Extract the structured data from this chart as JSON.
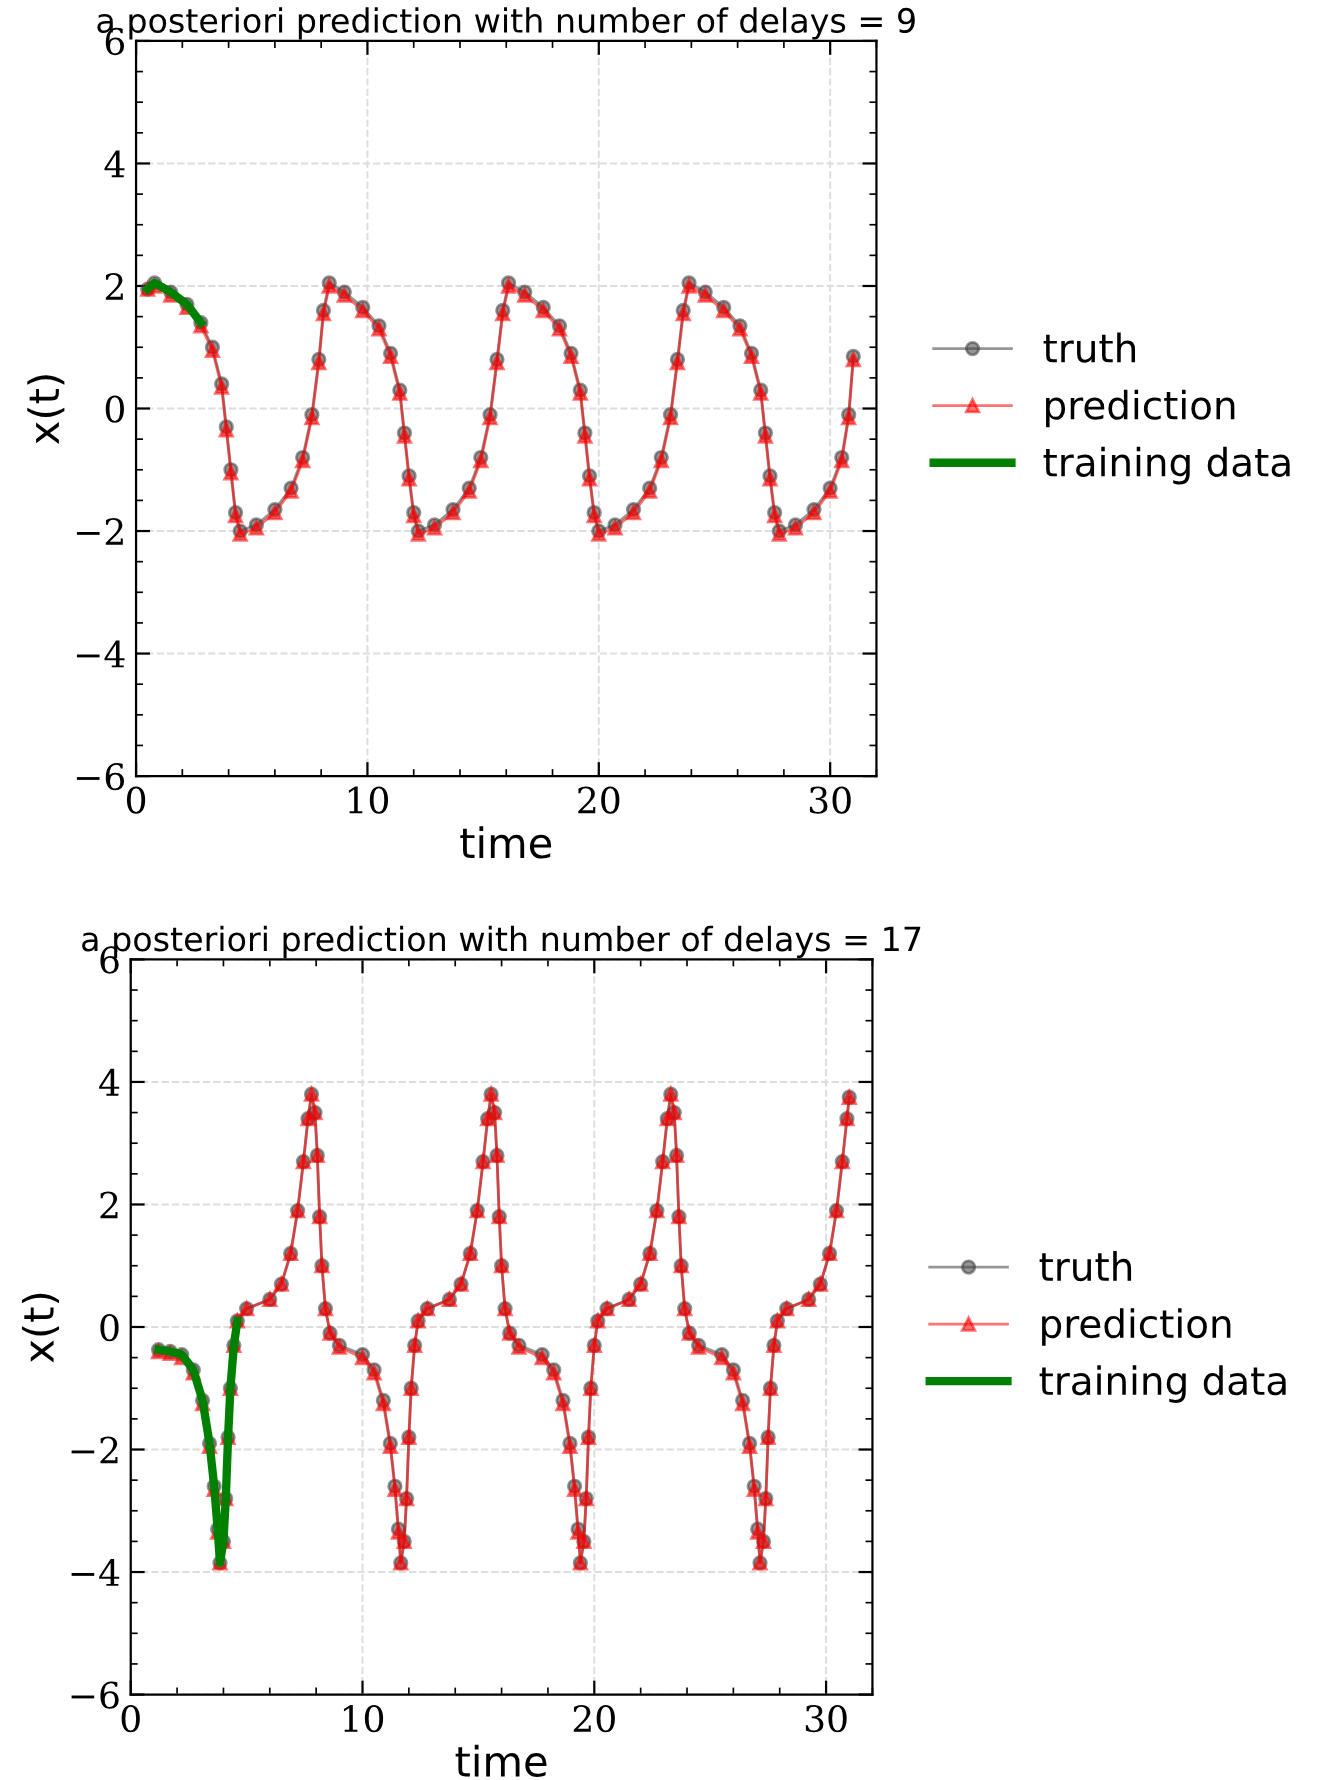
{
  "chart_data": [
    {
      "type": "line",
      "title": "a posteriori prediction with number of delays = 9",
      "xlabel": "time",
      "ylabel": "x(t)",
      "xlim": [
        0,
        32
      ],
      "ylim": [
        -6,
        6
      ],
      "xticks": [
        0,
        10,
        20,
        30
      ],
      "yticks": [
        {
          "value": -6,
          "label": "−6"
        },
        {
          "value": -4,
          "label": "−4"
        },
        {
          "value": -2,
          "label": "−2"
        },
        0,
        2,
        4,
        6
      ],
      "grid": true,
      "legend": "right",
      "x": [
        0.5,
        0.8,
        1.5,
        2.2,
        2.8,
        3.3,
        3.7,
        3.9,
        4.1,
        4.3,
        4.5,
        5.2,
        6.0,
        6.7,
        7.2,
        7.6,
        7.9,
        8.1,
        8.35,
        9.0,
        9.8,
        10.5,
        11.0,
        11.4,
        11.6,
        11.8,
        12.0,
        12.2,
        12.9,
        13.7,
        14.4,
        14.9,
        15.3,
        15.6,
        15.85,
        16.1,
        16.8,
        17.6,
        18.3,
        18.8,
        19.2,
        19.4,
        19.6,
        19.8,
        20.0,
        20.7,
        21.5,
        22.2,
        22.7,
        23.1,
        23.4,
        23.65,
        23.9,
        24.6,
        25.4,
        26.1,
        26.6,
        27.0,
        27.2,
        27.4,
        27.6,
        27.8,
        28.5,
        29.3,
        30.0,
        30.5,
        30.8,
        31.0
      ],
      "series": [
        {
          "name": "truth",
          "color": "#404040",
          "marker": "circle",
          "values": [
            1.95,
            2.05,
            1.9,
            1.7,
            1.4,
            1.0,
            0.4,
            -0.3,
            -1.0,
            -1.7,
            -2.0,
            -1.9,
            -1.65,
            -1.3,
            -0.8,
            -0.1,
            0.8,
            1.6,
            2.05,
            1.9,
            1.65,
            1.35,
            0.9,
            0.3,
            -0.4,
            -1.1,
            -1.7,
            -2.0,
            -1.9,
            -1.65,
            -1.3,
            -0.8,
            -0.1,
            0.8,
            1.6,
            2.05,
            1.9,
            1.65,
            1.35,
            0.9,
            0.3,
            -0.4,
            -1.1,
            -1.7,
            -2.0,
            -1.9,
            -1.65,
            -1.3,
            -0.8,
            -0.1,
            0.8,
            1.6,
            2.05,
            1.9,
            1.65,
            1.35,
            0.9,
            0.3,
            -0.4,
            -1.1,
            -1.7,
            -2.0,
            -1.9,
            -1.65,
            -1.3,
            -0.8,
            -0.1,
            0.85
          ]
        },
        {
          "name": "prediction",
          "color": "#ff0000",
          "marker": "triangle",
          "values": [
            1.95,
            2.0,
            1.85,
            1.65,
            1.35,
            0.95,
            0.35,
            -0.35,
            -1.05,
            -1.75,
            -2.05,
            -1.95,
            -1.7,
            -1.35,
            -0.85,
            -0.15,
            0.75,
            1.55,
            2.0,
            1.85,
            1.6,
            1.3,
            0.85,
            0.25,
            -0.45,
            -1.15,
            -1.75,
            -2.05,
            -1.95,
            -1.7,
            -1.35,
            -0.85,
            -0.15,
            0.75,
            1.55,
            2.0,
            1.85,
            1.6,
            1.3,
            0.85,
            0.25,
            -0.45,
            -1.15,
            -1.75,
            -2.05,
            -1.95,
            -1.7,
            -1.35,
            -0.85,
            -0.15,
            0.75,
            1.55,
            2.0,
            1.85,
            1.6,
            1.3,
            0.85,
            0.25,
            -0.45,
            -1.15,
            -1.75,
            -2.05,
            -1.95,
            -1.7,
            -1.35,
            -0.85,
            -0.15,
            0.8
          ]
        },
        {
          "name": "training data",
          "color": "#008000",
          "marker": "none",
          "x": [
            0.5,
            0.8,
            1.5,
            2.2,
            2.8
          ],
          "values": [
            1.95,
            2.05,
            1.9,
            1.7,
            1.4
          ]
        }
      ]
    },
    {
      "type": "line",
      "title": "a posteriori prediction with number of delays = 17",
      "xlabel": "time",
      "ylabel": "x(t)",
      "xlim": [
        0,
        32
      ],
      "ylim": [
        -6,
        6
      ],
      "xticks": [
        0,
        10,
        20,
        30
      ],
      "yticks": [
        {
          "value": -6,
          "label": "−6"
        },
        {
          "value": -4,
          "label": "−4"
        },
        {
          "value": -2,
          "label": "−2"
        },
        0,
        2,
        4,
        6
      ],
      "grid": true,
      "legend": "right",
      "x": [
        1.2,
        1.7,
        2.2,
        2.7,
        3.1,
        3.4,
        3.6,
        3.75,
        3.85,
        4.0,
        4.1,
        4.2,
        4.3,
        4.45,
        4.6,
        5.0,
        6.0,
        6.5,
        6.9,
        7.2,
        7.45,
        7.65,
        7.8,
        7.95,
        8.05,
        8.15,
        8.25,
        8.4,
        8.6,
        9.0,
        10.0,
        10.5,
        10.9,
        11.2,
        11.4,
        11.55,
        11.65,
        11.8,
        11.9,
        12.0,
        12.1,
        12.25,
        12.4,
        12.8,
        13.75,
        14.25,
        14.65,
        14.95,
        15.2,
        15.4,
        15.55,
        15.7,
        15.8,
        15.9,
        16.0,
        16.15,
        16.35,
        16.75,
        17.75,
        18.25,
        18.65,
        18.95,
        19.15,
        19.3,
        19.4,
        19.55,
        19.65,
        19.75,
        19.85,
        20.0,
        20.15,
        20.55,
        21.5,
        22.0,
        22.4,
        22.7,
        22.95,
        23.15,
        23.3,
        23.45,
        23.55,
        23.65,
        23.75,
        23.9,
        24.1,
        24.5,
        25.5,
        26.0,
        26.4,
        26.7,
        26.9,
        27.05,
        27.15,
        27.3,
        27.4,
        27.5,
        27.6,
        27.75,
        27.9,
        28.3,
        29.25,
        29.75,
        30.15,
        30.45,
        30.7,
        30.9,
        31.0
      ],
      "series": [
        {
          "name": "truth",
          "color": "#404040",
          "marker": "circle",
          "values": [
            -0.37,
            -0.4,
            -0.45,
            -0.7,
            -1.2,
            -1.9,
            -2.6,
            -3.3,
            -3.85,
            -3.5,
            -2.8,
            -1.8,
            -1.0,
            -0.3,
            0.1,
            0.3,
            0.45,
            0.7,
            1.2,
            1.9,
            2.7,
            3.4,
            3.8,
            3.5,
            2.8,
            1.8,
            1.0,
            0.3,
            -0.1,
            -0.3,
            -0.45,
            -0.7,
            -1.2,
            -1.9,
            -2.6,
            -3.3,
            -3.85,
            -3.5,
            -2.8,
            -1.8,
            -1.0,
            -0.3,
            0.1,
            0.3,
            0.45,
            0.7,
            1.2,
            1.9,
            2.7,
            3.4,
            3.8,
            3.5,
            2.8,
            1.8,
            1.0,
            0.3,
            -0.1,
            -0.3,
            -0.45,
            -0.7,
            -1.2,
            -1.9,
            -2.6,
            -3.3,
            -3.85,
            -3.5,
            -2.8,
            -1.8,
            -1.0,
            -0.3,
            0.1,
            0.3,
            0.45,
            0.7,
            1.2,
            1.9,
            2.7,
            3.4,
            3.8,
            3.5,
            2.8,
            1.8,
            1.0,
            0.3,
            -0.1,
            -0.3,
            -0.45,
            -0.7,
            -1.2,
            -1.9,
            -2.6,
            -3.3,
            -3.85,
            -3.5,
            -2.8,
            -1.8,
            -1.0,
            -0.3,
            0.1,
            0.3,
            0.45,
            0.7,
            1.2,
            1.9,
            2.7,
            3.4,
            3.75
          ]
        },
        {
          "name": "prediction",
          "color": "#ff0000",
          "marker": "triangle",
          "values": [
            -0.4,
            -0.43,
            -0.5,
            -0.75,
            -1.25,
            -1.95,
            -2.65,
            -3.35,
            -3.85,
            -3.5,
            -2.8,
            -1.8,
            -1.0,
            -0.3,
            0.1,
            0.3,
            0.45,
            0.7,
            1.2,
            1.9,
            2.7,
            3.4,
            3.8,
            3.5,
            2.8,
            1.8,
            1.0,
            0.3,
            -0.1,
            -0.33,
            -0.5,
            -0.75,
            -1.25,
            -1.95,
            -2.65,
            -3.35,
            -3.85,
            -3.5,
            -2.8,
            -1.8,
            -1.0,
            -0.3,
            0.1,
            0.3,
            0.45,
            0.7,
            1.2,
            1.9,
            2.7,
            3.4,
            3.8,
            3.5,
            2.8,
            1.8,
            1.0,
            0.3,
            -0.1,
            -0.33,
            -0.5,
            -0.75,
            -1.25,
            -1.95,
            -2.65,
            -3.35,
            -3.85,
            -3.5,
            -2.8,
            -1.8,
            -1.0,
            -0.3,
            0.1,
            0.3,
            0.45,
            0.7,
            1.2,
            1.9,
            2.7,
            3.4,
            3.8,
            3.5,
            2.8,
            1.8,
            1.0,
            0.3,
            -0.1,
            -0.33,
            -0.5,
            -0.75,
            -1.25,
            -1.95,
            -2.65,
            -3.35,
            -3.85,
            -3.5,
            -2.8,
            -1.8,
            -1.0,
            -0.3,
            0.1,
            0.3,
            0.45,
            0.7,
            1.2,
            1.9,
            2.7,
            3.4,
            3.75
          ]
        },
        {
          "name": "training data",
          "color": "#008000",
          "marker": "none",
          "x": [
            1.2,
            1.7,
            2.2,
            2.7,
            3.1,
            3.4,
            3.6,
            3.75,
            3.85,
            4.0,
            4.1,
            4.2,
            4.3,
            4.45,
            4.6
          ],
          "values": [
            -0.37,
            -0.4,
            -0.45,
            -0.7,
            -1.2,
            -1.9,
            -2.6,
            -3.3,
            -3.85,
            -3.5,
            -2.8,
            -1.8,
            -1.0,
            -0.3,
            0.1
          ]
        }
      ]
    }
  ]
}
